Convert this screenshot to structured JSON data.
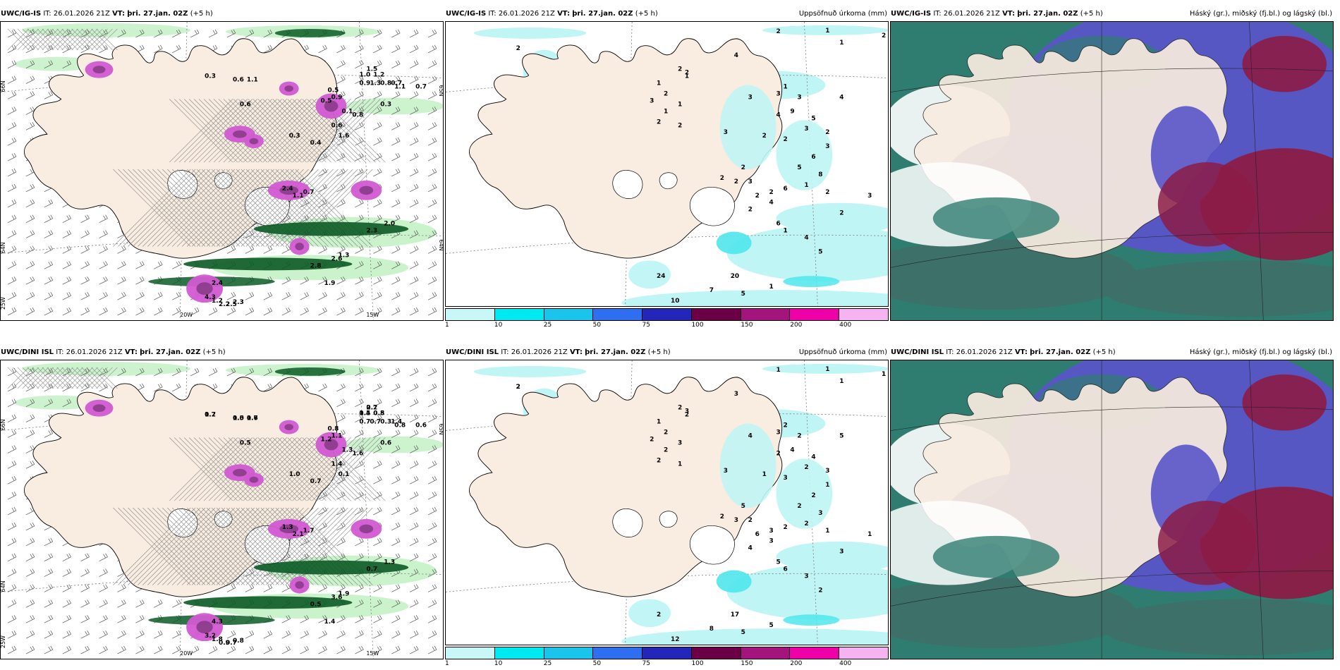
{
  "colors": {
    "land": "#f9ece0",
    "sea": "#ffffff",
    "cyan_light": "#bff5f5",
    "cyan": "#4fe6ec",
    "green_light": "#c7f2c9",
    "green_dark": "#0b5a26",
    "magenta": "#d25ad2",
    "purple_dark": "#8a3c8a",
    "cloud_blue": "#5a55c8",
    "cloud_red": "#8c1c46",
    "cloud_teal": "#2f7d70"
  },
  "run": {
    "issue": "IT: 26.01.2026 21Z",
    "vt_label": "VT:",
    "valid": "þri. 27.jan. 02Z",
    "lead": "(+5 h)"
  },
  "panels": [
    {
      "model": "UWC/IG-IS",
      "title_right": "",
      "lat_labels": [
        "66N",
        "64N",
        "25W",
        "20W",
        "15W",
        "65N",
        "64N"
      ],
      "numbers": [
        "0.3",
        "0.6",
        "1.1",
        "1.5",
        "1.0",
        "1.2",
        "0.7",
        "0.6",
        "0.5",
        "0.9",
        "0.5",
        "1.3",
        "0.8",
        "0.7",
        "1.1",
        "0.3",
        "0.9",
        "0.1",
        "0.8",
        "0.6",
        "1.6",
        "0.4",
        "0.3",
        "2.4",
        "1.1",
        "0.7",
        "2.0",
        "2.3",
        "1.3",
        "2.8",
        "1.9",
        "2.6",
        "2.4",
        "4.3",
        "1.2",
        "2.2",
        "2.5",
        "2.3"
      ]
    },
    {
      "model": "UWC/IG-IS",
      "title_right": "Uppsöfnuð úrkoma (mm)",
      "numbers": [
        "2",
        "2",
        "1",
        "1",
        "2",
        "4",
        "2",
        "2",
        "1",
        "1",
        "2",
        "3",
        "1",
        "1",
        "2",
        "2",
        "3",
        "3",
        "3",
        "1",
        "3",
        "9",
        "4",
        "4",
        "5",
        "3",
        "2",
        "2",
        "3",
        "6",
        "5",
        "1",
        "2",
        "6",
        "4",
        "2",
        "2",
        "2",
        "3",
        "2",
        "2",
        "2",
        "2",
        "3",
        "4",
        "5",
        "24",
        "20",
        "10",
        "7",
        "5",
        "1",
        "6",
        "1",
        "8",
        "2"
      ]
    },
    {
      "model": "UWC/IG-IS",
      "title_right": "Háský (gr.), miðský (fj.bl.) og lágský (bl.)"
    },
    {
      "model": "UWC/DINI ISL",
      "title_right": "",
      "lat_labels": [
        "66N",
        "64N",
        "25W",
        "20W",
        "15W",
        "65N"
      ],
      "numbers": [
        "0.7",
        "0.5",
        "0.6",
        "0.7",
        "0.5",
        "0.8",
        "0.6",
        "0.5",
        "0.8",
        "1.1",
        "1.2",
        "0.7",
        "0.3",
        "1.4",
        "0.8",
        "0.6",
        "0.7",
        "1.3",
        "1.6",
        "1.4",
        "0.1",
        "0.7",
        "1.0",
        "1.3",
        "2.1",
        "1.7",
        "1.3",
        "0.7",
        "1.9",
        "0.5",
        "1.4",
        "3.6",
        "4.3",
        "3.2",
        "1.8",
        "0.9",
        "0.7",
        "0.8",
        "1.2",
        "1.0",
        "1.7",
        "2.2",
        "1.4",
        "0.5"
      ]
    },
    {
      "model": "UWC/DINI ISL",
      "title_right": "Uppsöfnuð úrkoma (mm)",
      "numbers": [
        "2",
        "1",
        "1",
        "1",
        "1",
        "3",
        "3",
        "2",
        "2",
        "1",
        "2",
        "2",
        "3",
        "2",
        "2",
        "1",
        "3",
        "4",
        "3",
        "2",
        "2",
        "4",
        "5",
        "2",
        "4",
        "2",
        "1",
        "3",
        "1",
        "2",
        "2",
        "2",
        "3",
        "2",
        "3",
        "5",
        "2",
        "3",
        "2",
        "6",
        "4",
        "1",
        "3",
        "1",
        "3",
        "2",
        "2",
        "17",
        "12",
        "8",
        "5",
        "5",
        "5",
        "6",
        "3",
        "3",
        "2",
        "1"
      ]
    },
    {
      "model": "UWC/DINI ISL",
      "title_right": "Háský (gr.), miðský (fj.bl.) og lágský (bl.)"
    }
  ],
  "colorbar": {
    "labels": [
      "1",
      "10",
      "25",
      "50",
      "75",
      "100",
      "150",
      "200",
      "400"
    ],
    "colors": [
      "#c8f7f7",
      "#00e8f0",
      "#1cc4ec",
      "#2e6ff0",
      "#2326b8",
      "#6b0046",
      "#a3157d",
      "#ee00a9",
      "#f5b3f2"
    ]
  }
}
